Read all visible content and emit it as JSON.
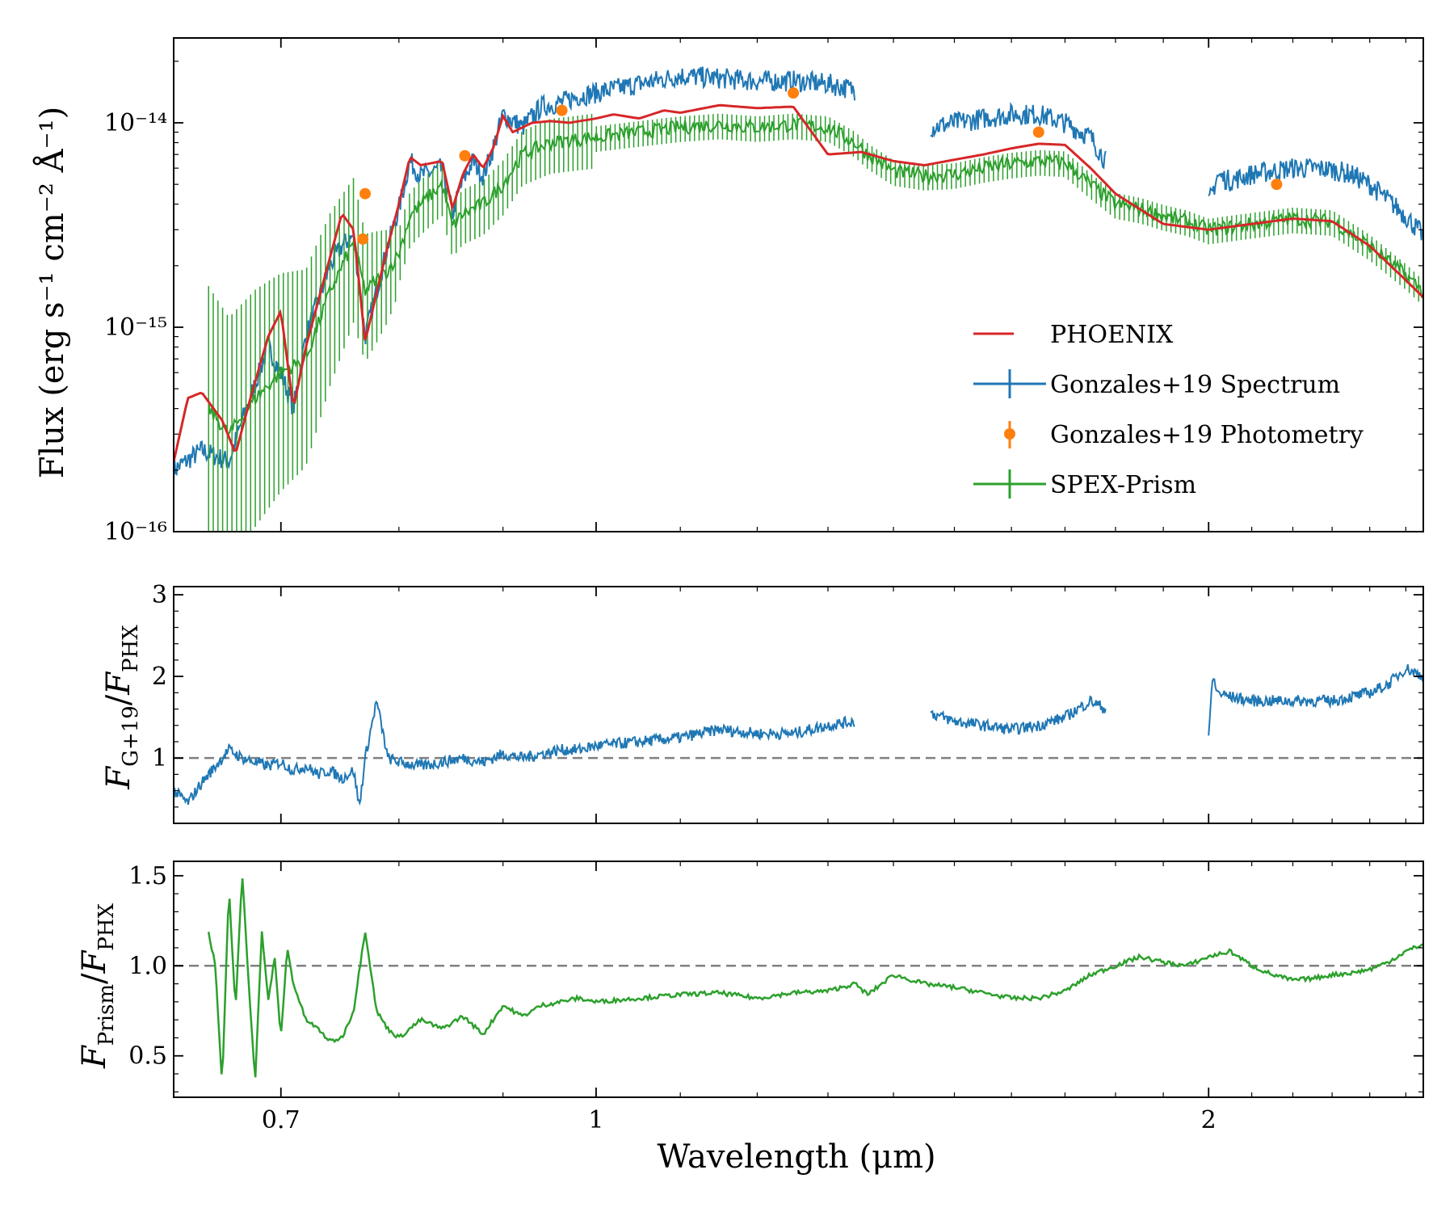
{
  "chart_data": {
    "type": "line",
    "x_scale": "log",
    "x_range": [
      0.62,
      2.55
    ],
    "xlabel": "Wavelength (μm)",
    "x_ticks": [
      0.7,
      1,
      2
    ],
    "x_tick_labels": [
      "0.7",
      "1",
      "2"
    ],
    "colors": {
      "phoenix": "#d62728",
      "spectrum": "#1f77b4",
      "photometry": "#ff7f0e",
      "prism": "#2ca02c",
      "reference": "#808080"
    },
    "legend": {
      "position": "lower-right",
      "entries": [
        "PHOENIX",
        "Gonzales+19 Spectrum",
        "Gonzales+19 Photometry",
        "SPEX-Prism"
      ]
    },
    "panels": [
      {
        "id": "flux",
        "ylabel": "Flux (erg s⁻¹ cm⁻² Å⁻¹)",
        "y_scale": "log",
        "y_range": [
          1e-16,
          2.6e-14
        ],
        "y_ticks": [
          1e-16,
          1e-15,
          1e-14
        ],
        "y_tick_labels": [
          "10⁻¹⁶",
          "10⁻¹⁵",
          "10⁻¹⁴"
        ],
        "series": [
          {
            "name": "PHOENIX",
            "x": [
              0.62,
              0.63,
              0.64,
              0.655,
              0.665,
              0.675,
              0.69,
              0.7,
              0.71,
              0.72,
              0.74,
              0.75,
              0.76,
              0.77,
              0.79,
              0.8,
              0.81,
              0.82,
              0.84,
              0.85,
              0.86,
              0.87,
              0.88,
              0.89,
              0.9,
              0.91,
              0.93,
              0.95,
              0.97,
              1.0,
              1.02,
              1.05,
              1.08,
              1.1,
              1.15,
              1.2,
              1.25,
              1.3,
              1.35,
              1.4,
              1.45,
              1.5,
              1.55,
              1.6,
              1.65,
              1.7,
              1.75,
              1.8,
              1.9,
              2.0,
              2.1,
              2.2,
              2.3,
              2.4,
              2.5,
              2.55
            ],
            "y": [
              2.2e-16,
              4.5e-16,
              4.8e-16,
              3.5e-16,
              2.4e-16,
              4.2e-16,
              9e-16,
              1.2e-15,
              4e-16,
              8e-16,
              2.2e-15,
              3.6e-15,
              3e-15,
              8.5e-16,
              2.5e-15,
              4e-15,
              6.8e-15,
              6.2e-15,
              6.5e-15,
              3.8e-15,
              5.6e-15,
              7e-15,
              6e-15,
              7.5e-15,
              1.08e-14,
              9e-15,
              1e-14,
              1.02e-14,
              1e-14,
              1.05e-14,
              1.1e-14,
              1.05e-14,
              1.15e-14,
              1.12e-14,
              1.22e-14,
              1.18e-14,
              1.2e-14,
              7e-15,
              7.2e-15,
              6.5e-15,
              6.2e-15,
              6.6e-15,
              7e-15,
              7.5e-15,
              7.9e-15,
              7.8e-15,
              6e-15,
              4.5e-15,
              3.2e-15,
              3e-15,
              3.2e-15,
              3.4e-15,
              3.3e-15,
              2.5e-15,
              1.7e-15,
              1.4e-15
            ]
          },
          {
            "name": "Gonzales+19 Spectrum",
            "segments": [
              {
                "x": [
                  0.62,
                  0.64,
                  0.66,
                  0.67,
                  0.69,
                  0.7,
                  0.71,
                  0.72,
                  0.74,
                  0.75,
                  0.76,
                  0.77,
                  0.79,
                  0.8,
                  0.81,
                  0.82,
                  0.84,
                  0.85,
                  0.86,
                  0.87,
                  0.88,
                  0.89,
                  0.9,
                  0.92,
                  0.94,
                  0.96,
                  0.98,
                  1.0,
                  1.05,
                  1.1,
                  1.15,
                  1.2,
                  1.25,
                  1.3,
                  1.34
                ],
                "y": [
                  2e-16,
                  2.5e-16,
                  2.2e-16,
                  3.5e-16,
                  8e-16,
                  6e-16,
                  4e-16,
                  9e-16,
                  2e-15,
                  2.5e-15,
                  2.8e-15,
                  9e-16,
                  2.5e-15,
                  3.8e-15,
                  6.5e-15,
                  5.5e-15,
                  6e-15,
                  3.6e-15,
                  5.2e-15,
                  6.5e-15,
                  5.5e-15,
                  7.5e-15,
                  1.1e-14,
                  9.5e-15,
                  1.2e-14,
                  1.25e-14,
                  1.35e-14,
                  1.4e-14,
                  1.55e-14,
                  1.7e-14,
                  1.65e-14,
                  1.6e-14,
                  1.6e-14,
                  1.55e-14,
                  1.45e-14
                ]
              },
              {
                "x": [
                  1.46,
                  1.5,
                  1.55,
                  1.6,
                  1.65,
                  1.7,
                  1.75,
                  1.78
                ],
                "y": [
                  9.5e-15,
                  1e-14,
                  1.05e-14,
                  1.1e-14,
                  1.1e-14,
                  1e-14,
                  8.5e-15,
                  6.5e-15
                ]
              },
              {
                "x": [
                  2.0,
                  2.02,
                  2.05,
                  2.1,
                  2.15,
                  2.2,
                  2.25,
                  2.3,
                  2.35,
                  2.4,
                  2.45,
                  2.5,
                  2.55
                ],
                "y": [
                  4e-15,
                  5.5e-15,
                  5.2e-15,
                  5.6e-15,
                  5.8e-15,
                  6e-15,
                  6e-15,
                  5.9e-15,
                  5.6e-15,
                  5e-15,
                  4.2e-15,
                  3.5e-15,
                  2.8e-15
                ]
              }
            ]
          },
          {
            "name": "Gonzales+19 Photometry",
            "x": [
              0.768,
              0.77,
              0.862,
              0.962,
              1.25,
              1.65,
              2.16
            ],
            "y": [
              2.7e-15,
              4.5e-15,
              6.9e-15,
              1.15e-14,
              1.4e-14,
              9e-15,
              5e-15
            ]
          },
          {
            "name": "SPEX-Prism",
            "x": [
              0.645,
              0.66,
              0.68,
              0.7,
              0.72,
              0.74,
              0.76,
              0.77,
              0.79,
              0.8,
              0.81,
              0.82,
              0.84,
              0.85,
              0.86,
              0.88,
              0.9,
              0.92,
              0.95,
              1.0,
              1.05,
              1.1,
              1.15,
              1.2,
              1.25,
              1.3,
              1.34,
              1.36,
              1.4,
              1.45,
              1.5,
              1.55,
              1.6,
              1.65,
              1.7,
              1.75,
              1.8,
              1.85,
              1.9,
              1.95,
              2.0,
              2.05,
              2.1,
              2.2,
              2.3,
              2.4,
              2.5,
              2.55
            ],
            "y": [
              4e-16,
              3e-16,
              4.5e-16,
              6e-16,
              7e-16,
              1.5e-15,
              2.6e-15,
              1.5e-15,
              1.9e-15,
              2.3e-15,
              3.5e-15,
              4e-15,
              5e-15,
              3.1e-15,
              3.6e-15,
              4e-15,
              5e-15,
              7e-15,
              8e-15,
              8.5e-15,
              9e-15,
              9.5e-15,
              9.8e-15,
              9.5e-15,
              9.8e-15,
              9.5e-15,
              8e-15,
              7e-15,
              5.8e-15,
              5.5e-15,
              5.6e-15,
              6e-15,
              6.3e-15,
              6.5e-15,
              6.4e-15,
              5e-15,
              4e-15,
              3.8e-15,
              3.5e-15,
              3.3e-15,
              3e-15,
              3.1e-15,
              3.2e-15,
              3.4e-15,
              3.3e-15,
              2.5e-15,
              1.8e-15,
              1.5e-15
            ],
            "err_fraction_blue": 1.2,
            "err_fraction_red": 0.12
          }
        ]
      },
      {
        "id": "ratio-g19",
        "ylabel": "F_G+19/F_PHX",
        "y_scale": "linear",
        "y_range": [
          0.2,
          3.1
        ],
        "y_ticks": [
          1,
          2,
          3
        ],
        "y_tick_labels": [
          "1",
          "2",
          "3"
        ],
        "reference_line": 1,
        "series": [
          {
            "name": "Gonzales+19 Spectrum",
            "segments": [
              {
                "x": [
                  0.62,
                  0.63,
                  0.64,
                  0.65,
                  0.66,
                  0.67,
                  0.68,
                  0.69,
                  0.7,
                  0.71,
                  0.72,
                  0.73,
                  0.74,
                  0.75,
                  0.76,
                  0.765,
                  0.77,
                  0.78,
                  0.79,
                  0.8,
                  0.82,
                  0.84,
                  0.86,
                  0.88,
                  0.9,
                  0.92,
                  0.94,
                  0.96,
                  0.98,
                  1.0,
                  1.05,
                  1.1,
                  1.15,
                  1.2,
                  1.25,
                  1.3,
                  1.34
                ],
                "y": [
                  0.6,
                  0.45,
                  0.7,
                  0.9,
                  1.1,
                  1.0,
                  0.95,
                  0.9,
                  0.95,
                  0.85,
                  0.9,
                  0.8,
                  0.85,
                  0.75,
                  0.85,
                  0.4,
                  1.0,
                  1.7,
                  1.0,
                  0.95,
                  0.9,
                  0.95,
                  1.0,
                  0.95,
                  1.05,
                  1.0,
                  1.05,
                  1.1,
                  1.1,
                  1.15,
                  1.2,
                  1.25,
                  1.35,
                  1.3,
                  1.3,
                  1.4,
                  1.45
                ]
              },
              {
                "x": [
                  1.46,
                  1.5,
                  1.55,
                  1.6,
                  1.65,
                  1.7,
                  1.75,
                  1.78
                ],
                "y": [
                  1.55,
                  1.45,
                  1.4,
                  1.35,
                  1.4,
                  1.5,
                  1.7,
                  1.6
                ]
              },
              {
                "x": [
                  2.0,
                  2.01,
                  2.02,
                  2.05,
                  2.1,
                  2.15,
                  2.2,
                  2.25,
                  2.3,
                  2.35,
                  2.4,
                  2.45,
                  2.5,
                  2.55
                ],
                "y": [
                  1.3,
                  2.0,
                  1.8,
                  1.75,
                  1.7,
                  1.7,
                  1.7,
                  1.7,
                  1.7,
                  1.75,
                  1.8,
                  1.9,
                  2.1,
                  2.0
                ]
              }
            ]
          }
        ]
      },
      {
        "id": "ratio-prism",
        "ylabel": "F_Prism/F_PHX",
        "y_scale": "linear",
        "y_range": [
          0.27,
          1.58
        ],
        "y_ticks": [
          0.5,
          1.0,
          1.5
        ],
        "y_tick_labels": [
          "0.5",
          "1.0",
          "1.5"
        ],
        "reference_line": 1.0,
        "series": [
          {
            "name": "SPEX-Prism",
            "x": [
              0.645,
              0.65,
              0.655,
              0.66,
              0.665,
              0.67,
              0.675,
              0.68,
              0.685,
              0.69,
              0.695,
              0.7,
              0.705,
              0.71,
              0.72,
              0.73,
              0.74,
              0.75,
              0.76,
              0.77,
              0.78,
              0.79,
              0.8,
              0.82,
              0.84,
              0.86,
              0.88,
              0.9,
              0.92,
              0.94,
              0.96,
              0.98,
              1.0,
              1.05,
              1.1,
              1.15,
              1.2,
              1.25,
              1.3,
              1.34,
              1.36,
              1.4,
              1.45,
              1.5,
              1.55,
              1.6,
              1.65,
              1.7,
              1.75,
              1.8,
              1.85,
              1.9,
              1.95,
              2.0,
              2.05,
              2.1,
              2.15,
              2.2,
              2.25,
              2.3,
              2.35,
              2.4,
              2.45,
              2.5,
              2.55
            ],
            "y": [
              1.18,
              1.0,
              0.32,
              1.44,
              0.75,
              1.52,
              0.9,
              0.36,
              1.2,
              0.8,
              1.05,
              0.6,
              1.1,
              0.9,
              0.7,
              0.65,
              0.58,
              0.6,
              0.75,
              1.2,
              0.75,
              0.65,
              0.6,
              0.7,
              0.65,
              0.72,
              0.62,
              0.78,
              0.72,
              0.78,
              0.8,
              0.82,
              0.8,
              0.82,
              0.84,
              0.85,
              0.82,
              0.85,
              0.86,
              0.9,
              0.84,
              0.95,
              0.9,
              0.88,
              0.85,
              0.82,
              0.82,
              0.86,
              0.95,
              1.0,
              1.05,
              1.02,
              1.0,
              1.05,
              1.08,
              1.0,
              0.95,
              0.92,
              0.93,
              0.95,
              0.96,
              0.98,
              1.02,
              1.08,
              1.12
            ]
          }
        ]
      }
    ]
  }
}
